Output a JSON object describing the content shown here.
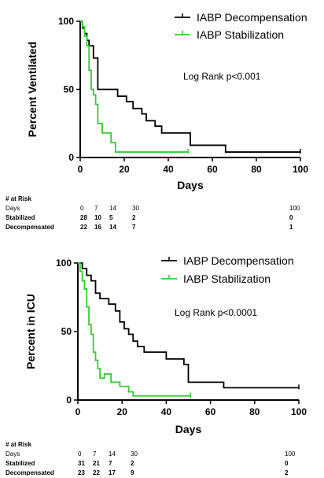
{
  "charts": [
    {
      "chart_data": {
        "type": "line",
        "step": true,
        "xlabel": "Days",
        "ylabel": "Percent Ventilated",
        "xlim": [
          0,
          100
        ],
        "ylim": [
          0,
          100
        ],
        "xticks": [
          "0",
          "20",
          "40",
          "60",
          "80",
          "100"
        ],
        "yticks": [
          "0",
          "50",
          "100"
        ],
        "annotation": "Log Rank p<0.001",
        "legend_position": "top-right",
        "series": [
          {
            "name": "IABP Decompensation",
            "color": "#000000",
            "x": [
              0,
              1,
              2,
              3,
              4,
              6,
              8,
              14,
              17,
              21,
              24,
              28,
              30,
              34,
              37,
              41,
              45,
              50,
              66,
              100
            ],
            "y": [
              100,
              95,
              91,
              86,
              82,
              73,
              50,
              50,
              45,
              41,
              36,
              32,
              27,
              23,
              18,
              18,
              18,
              9,
              4,
              4
            ]
          },
          {
            "name": "IABP Stabilization",
            "color": "#33cc33",
            "x": [
              0,
              1,
              2,
              3,
              4,
              5,
              6,
              7,
              8,
              10,
              14,
              16,
              17,
              49
            ],
            "y": [
              100,
              96,
              89,
              82,
              64,
              50,
              46,
              39,
              25,
              18,
              11,
              4,
              4,
              4
            ]
          }
        ]
      },
      "risk_table": {
        "title": "# at Risk",
        "header_label": "Days",
        "columns": [
          "0",
          "7",
          "14",
          "30",
          "100"
        ],
        "rows": [
          {
            "label": "Stabilized",
            "values": [
              "28",
              "10",
              "5",
              "2",
              "0"
            ]
          },
          {
            "label": "Decompensated",
            "values": [
              "22",
              "16",
              "14",
              "7",
              "1"
            ]
          }
        ]
      }
    },
    {
      "chart_data": {
        "type": "line",
        "step": true,
        "xlabel": "Days",
        "ylabel": "Percent in ICU",
        "xlim": [
          0,
          100
        ],
        "ylim": [
          0,
          100
        ],
        "xticks": [
          "0",
          "20",
          "40",
          "60",
          "80",
          "100"
        ],
        "yticks": [
          "0",
          "50",
          "100"
        ],
        "annotation": "Log Rank p<0.0001",
        "legend_position": "top-right",
        "series": [
          {
            "name": "IABP Decompensation",
            "color": "#000000",
            "x": [
              0,
              2,
              4,
              6,
              8,
              10,
              12,
              14,
              17,
              19,
              21,
              23,
              25,
              27,
              30,
              34,
              40,
              44,
              48,
              50,
              66,
              100
            ],
            "y": [
              100,
              96,
              91,
              87,
              78,
              74,
              74,
              70,
              65,
              57,
              52,
              48,
              43,
              39,
              35,
              35,
              30,
              30,
              26,
              13,
              9,
              9
            ]
          },
          {
            "name": "IABP Stabilization",
            "color": "#33cc33",
            "x": [
              0,
              1,
              2,
              3,
              4,
              5,
              6,
              7,
              8,
              9,
              10,
              12,
              15,
              19,
              23,
              25,
              49,
              51
            ],
            "y": [
              100,
              94,
              87,
              81,
              68,
              55,
              48,
              35,
              29,
              23,
              16,
              19,
              13,
              10,
              6,
              3,
              3,
              3
            ]
          }
        ]
      },
      "risk_table": {
        "title": "# at Risk",
        "header_label": "Days",
        "columns": [
          "0",
          "7",
          "14",
          "30",
          "100"
        ],
        "rows": [
          {
            "label": "Stabilized",
            "values": [
              "31",
              "21",
              "7",
              "2",
              "0"
            ]
          },
          {
            "label": "Decompensated",
            "values": [
              "23",
              "22",
              "17",
              "9",
              "2"
            ]
          }
        ]
      }
    }
  ]
}
